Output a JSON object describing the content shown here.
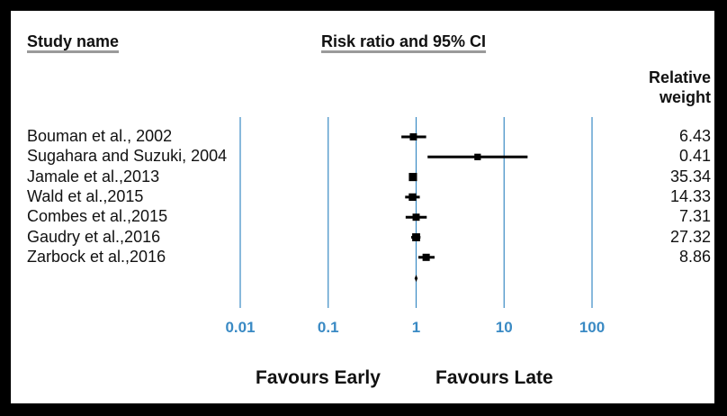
{
  "chart_data": {
    "type": "forest",
    "headers": {
      "study": "Study name",
      "effect": "Risk ratio and 95% CI",
      "weight_line1": "Relative",
      "weight_line2": "weight"
    },
    "x_scale": "log",
    "x_ticks": [
      "0.01",
      "0.1",
      "1",
      "10",
      "100"
    ],
    "xlim": [
      0.01,
      100
    ],
    "xlabel_left": "Favours Early",
    "xlabel_right": "Favours Late",
    "grid": "vertical lines at each tick",
    "studies": [
      {
        "name": "Bouman et al., 2002",
        "rr": 0.93,
        "lo": 0.68,
        "hi": 1.3,
        "weight": "6.43"
      },
      {
        "name": "Sugahara and Suzuki, 2004",
        "rr": 5.0,
        "lo": 1.35,
        "hi": 18.5,
        "weight": "0.41"
      },
      {
        "name": "Jamale et al.,2013",
        "rr": 0.92,
        "lo": 0.83,
        "hi": 1.02,
        "weight": "35.34"
      },
      {
        "name": "Wald et al.,2015",
        "rr": 0.91,
        "lo": 0.75,
        "hi": 1.1,
        "weight": "14.33"
      },
      {
        "name": "Combes et al.,2015",
        "rr": 1.0,
        "lo": 0.76,
        "hi": 1.32,
        "weight": "7.31"
      },
      {
        "name": "Gaudry et al.,2016",
        "rr": 1.0,
        "lo": 0.88,
        "hi": 1.12,
        "weight": "27.32"
      },
      {
        "name": "Zarbock et al.,2016",
        "rr": 1.3,
        "lo": 1.06,
        "hi": 1.62,
        "weight": "8.86"
      }
    ],
    "pooled": {
      "rr": 1.0,
      "lo": 0.96,
      "hi": 1.04
    },
    "colors": {
      "axis": "#3a8ac4",
      "marker": "#000000",
      "frame": "#000000"
    }
  }
}
